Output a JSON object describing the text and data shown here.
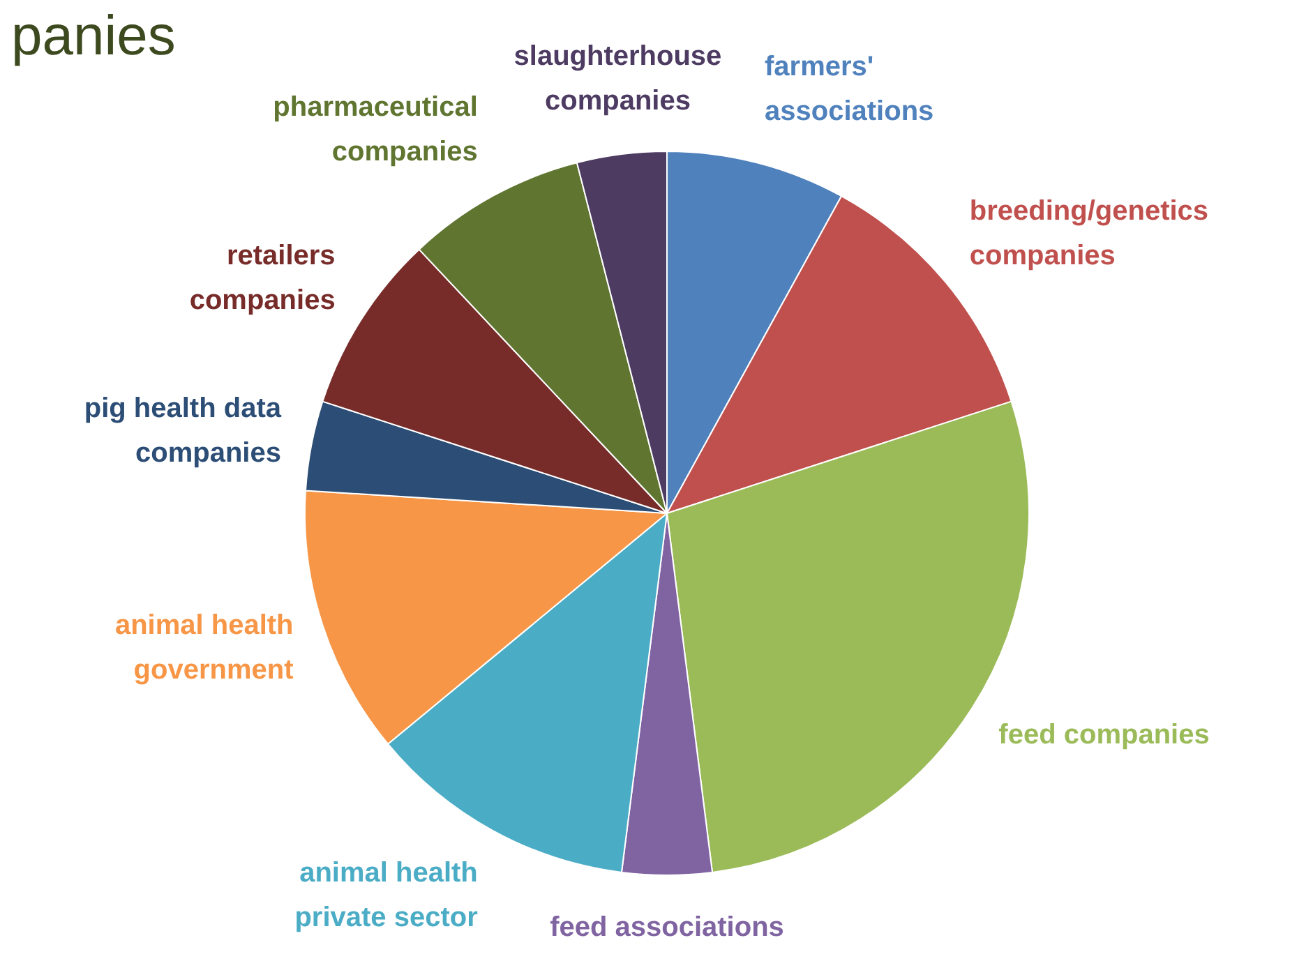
{
  "chart_data": {
    "type": "pie",
    "title": "panies",
    "categories": [
      "farmers' associations",
      "breeding/genetics companies",
      "feed companies",
      "feed associations",
      "animal health private sector",
      "animal health government",
      "pig health data companies",
      "retailers companies",
      "pharmaceutical companies",
      "slaughterhouse companies"
    ],
    "values": [
      8,
      12,
      28,
      4,
      12,
      12,
      4,
      8,
      8,
      4
    ],
    "colors": [
      "#4f81bd",
      "#c0504d",
      "#9bbb59",
      "#8064a2",
      "#4bacc6",
      "#f79646",
      "#2c4d75",
      "#772c2a",
      "#5f7530",
      "#4d3b62"
    ],
    "legend": false
  }
}
